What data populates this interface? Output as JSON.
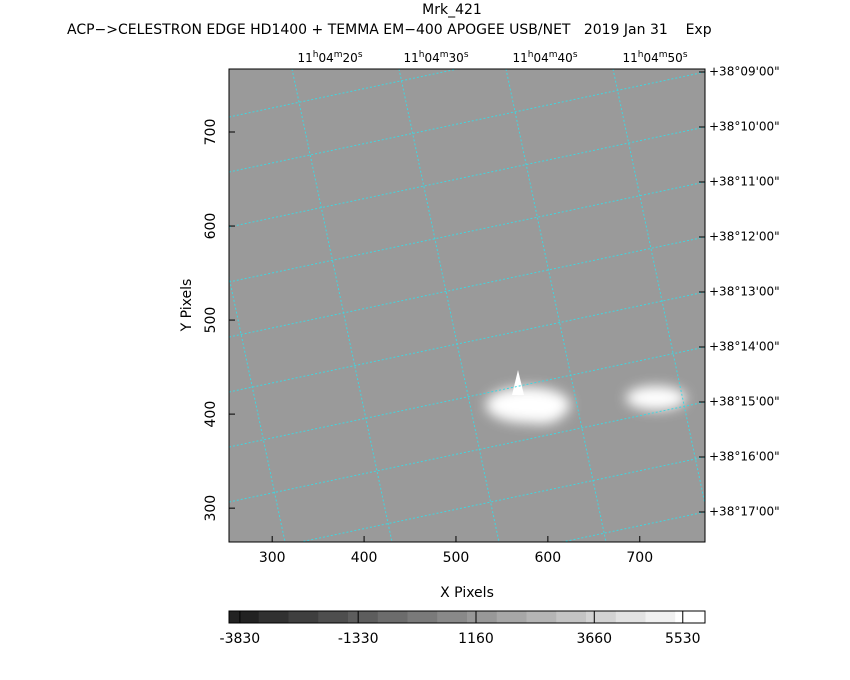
{
  "chart_data": {
    "type": "image",
    "title": "Mrk_421",
    "subtitle": "ACP−>CELESTRON EDGE HD1400 + TEMMA EM−400 APOGEE USB/NET   2019 Jan 31    Exp",
    "xlabel": "X Pixels",
    "ylabel": "Y Pixels",
    "xlim": [
      253,
      771
    ],
    "xticks": [
      300,
      400,
      500,
      600,
      700
    ],
    "ylim": [
      264,
      767
    ],
    "yticks": [
      300,
      400,
      500,
      600,
      700
    ],
    "ra_labels": [
      [
        "11",
        "h",
        "04",
        "m",
        "20",
        "s"
      ],
      [
        "11",
        "h",
        "04",
        "m",
        "30",
        "s"
      ],
      [
        "11",
        "h",
        "04",
        "m",
        "40",
        "s"
      ],
      [
        "11",
        "h",
        "04",
        "m",
        "50",
        "s"
      ]
    ],
    "dec_labels": [
      "+38°09'00\"",
      "+38°10'00\"",
      "+38°11'00\"",
      "+38°12'00\"",
      "+38°13'00\"",
      "+38°14'00\"",
      "+38°15'00\"",
      "+38°16'00\"",
      "+38°17'00\""
    ],
    "colorbar": {
      "lim": [
        -4060,
        6000
      ],
      "ticks": [
        -3830,
        -1330,
        1160,
        3660,
        5530
      ]
    }
  }
}
